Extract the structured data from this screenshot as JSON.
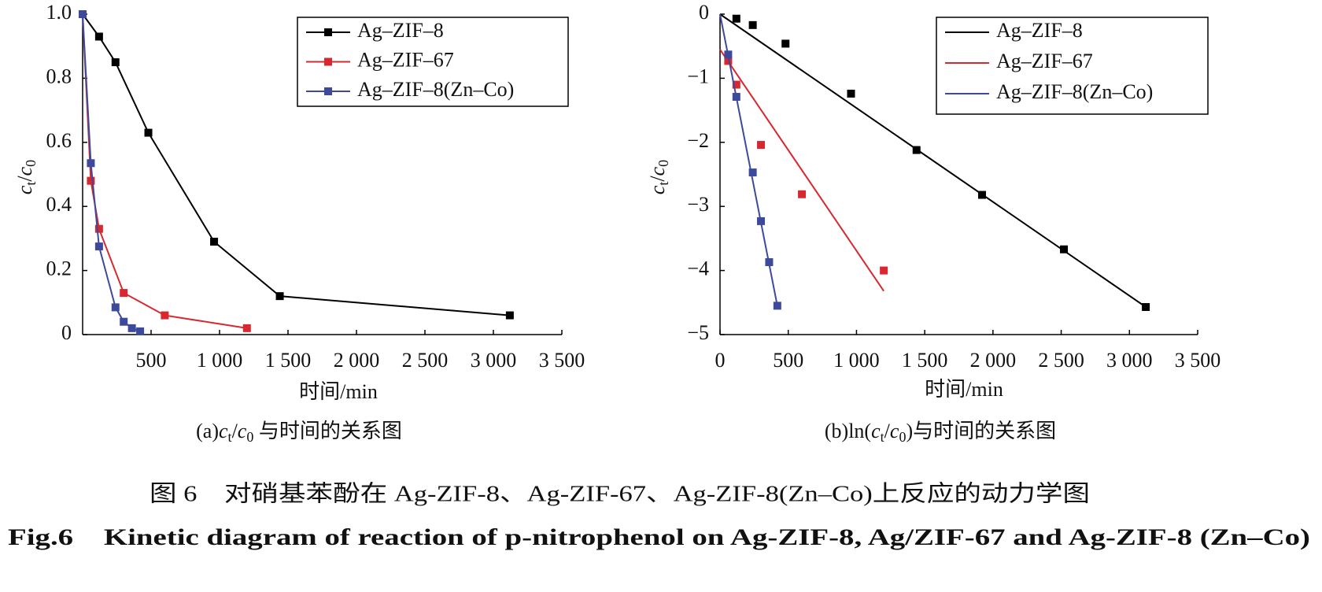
{
  "chart_data": [
    {
      "type": "line",
      "xlim": [
        0,
        3500
      ],
      "ylim": [
        0,
        1
      ],
      "xticks": [
        500,
        {
          "value": 1000,
          "label": "1 000"
        },
        {
          "value": 1500,
          "label": "1 500"
        },
        {
          "value": 2000,
          "label": "2 000"
        },
        {
          "value": 2500,
          "label": "2 500"
        },
        {
          "value": 3000,
          "label": "3 000"
        },
        {
          "value": 3500,
          "label": "3 500"
        }
      ],
      "yticks": [
        0,
        0.2,
        0.4,
        0.6,
        0.8,
        {
          "value": 1,
          "label": "1.0"
        }
      ],
      "xlabel": "时间/min",
      "ylabel": [
        "c",
        "t",
        "/",
        "c",
        "0"
      ],
      "caption": [
        "(a)",
        "c",
        "t",
        "/",
        "c",
        "0",
        " 与时间的关系图"
      ],
      "series": [
        {
          "name": "Ag–ZIF–8",
          "color": "#000000",
          "x": [
            0,
            120,
            240,
            480,
            960,
            1440,
            3120
          ],
          "values": [
            1.0,
            0.93,
            0.85,
            0.63,
            0.29,
            0.12,
            0.06
          ]
        },
        {
          "name": "Ag–ZIF–67",
          "color": "#d7282f",
          "x": [
            0,
            60,
            120,
            300,
            600,
            1200
          ],
          "values": [
            1.0,
            0.48,
            0.33,
            0.13,
            0.06,
            0.02
          ]
        },
        {
          "name": "Ag–ZIF–8(Zn–Co)",
          "color": "#3d4a9c",
          "x": [
            0,
            60,
            120,
            240,
            300,
            360,
            420
          ],
          "values": [
            1.0,
            0.535,
            0.275,
            0.085,
            0.04,
            0.02,
            0.01
          ]
        }
      ]
    },
    {
      "type": "scatter",
      "xlim": [
        0,
        3500
      ],
      "ylim": [
        -5,
        0
      ],
      "xticks": [
        0,
        500,
        {
          "value": 1000,
          "label": "1 000"
        },
        {
          "value": 1500,
          "label": "1 500"
        },
        {
          "value": 2000,
          "label": "2 000"
        },
        {
          "value": 2500,
          "label": "2 500"
        },
        {
          "value": 3000,
          "label": "3 000"
        },
        {
          "value": 3500,
          "label": "3 500"
        }
      ],
      "yticks": [
        {
          "value": -5,
          "label": "−5"
        },
        {
          "value": -4,
          "label": "−4"
        },
        {
          "value": -3,
          "label": "−3"
        },
        {
          "value": -2,
          "label": "−2"
        },
        {
          "value": -1,
          "label": "−1"
        },
        0
      ],
      "xlabel": "时间/min",
      "ylabel": [
        "c",
        "t",
        "/",
        "c",
        "0"
      ],
      "caption": [
        "(b)ln(",
        "c",
        "t",
        "/",
        "c",
        "0",
        ")与时间的关系图"
      ],
      "series": [
        {
          "name": "Ag–ZIF–8",
          "color": "#000000",
          "x": [
            120,
            240,
            480,
            960,
            1440,
            1920,
            2520,
            3120
          ],
          "values": [
            -0.07,
            -0.17,
            -0.46,
            -1.24,
            -2.12,
            -2.82,
            -3.67,
            -4.57
          ],
          "fit": {
            "x": [
              0,
              3120
            ],
            "values": [
              0,
              -4.57
            ]
          }
        },
        {
          "name": "Ag–ZIF–67",
          "color": "#d7282f",
          "x": [
            60,
            120,
            300,
            600,
            1200
          ],
          "values": [
            -0.73,
            -1.1,
            -2.04,
            -2.81,
            -4.0
          ],
          "fit": {
            "x": [
              0,
              1200
            ],
            "values": [
              -0.55,
              -4.32
            ]
          }
        },
        {
          "name": "Ag–ZIF–8(Zn–Co)",
          "color": "#3d4a9c",
          "x": [
            60,
            120,
            240,
            300,
            360,
            420
          ],
          "values": [
            -0.63,
            -1.29,
            -2.47,
            -3.23,
            -3.87,
            -4.55
          ],
          "fit": {
            "x": [
              0,
              420
            ],
            "values": [
              0,
              -4.55
            ]
          }
        }
      ]
    }
  ],
  "figure_caption": {
    "zh": "图 6　对硝基苯酚在 Ag-ZIF-8、Ag-ZIF-67、Ag-ZIF-8(Zn–Co)上反应的动力学图",
    "en": "Fig.6　Kinetic diagram of reaction of p-nitrophenol on Ag-ZIF-8, Ag/ZIF-67 and Ag-ZIF-8 (Zn–Co)"
  }
}
